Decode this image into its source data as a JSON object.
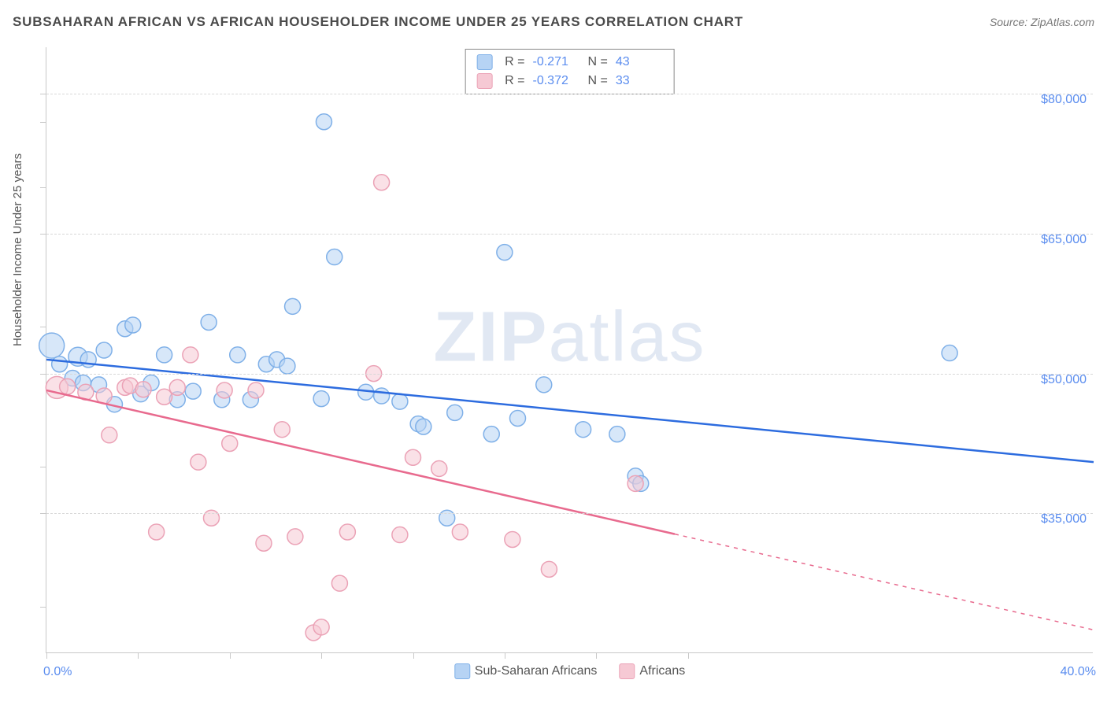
{
  "title": "SUBSAHARAN AFRICAN VS AFRICAN HOUSEHOLDER INCOME UNDER 25 YEARS CORRELATION CHART",
  "source_label": "Source: ZipAtlas.com",
  "y_axis_label": "Householder Income Under 25 years",
  "watermark": "ZIPatlas",
  "chart": {
    "type": "scatter-with-trendlines",
    "xlim": [
      0,
      40
    ],
    "ylim": [
      20000,
      85000
    ],
    "x_tick_positions": [
      0,
      3.5,
      7,
      10.5,
      14,
      17.5,
      21,
      24.5
    ],
    "x_axis_start_label": "0.0%",
    "x_axis_end_label": "40.0%",
    "y_ticks": [
      {
        "value": 35000,
        "label": "$35,000"
      },
      {
        "value": 50000,
        "label": "$50,000"
      },
      {
        "value": 65000,
        "label": "$65,000"
      },
      {
        "value": 80000,
        "label": "$80,000"
      }
    ],
    "y_tick_minors": [
      25000,
      40000,
      55000,
      70000,
      77000
    ],
    "background_color": "#ffffff",
    "grid_color": "#d8d8d8",
    "axis_color": "#c9c9c9",
    "tick_label_color": "#5b8def",
    "series": [
      {
        "name": "Sub-Saharan Africans",
        "color_fill": "#b6d3f4",
        "color_stroke": "#7fb0e8",
        "trend_color": "#2d6cdf",
        "marker_radius": 10,
        "R": "-0.271",
        "N": "43",
        "trendline": {
          "x1": 0,
          "y1": 51500,
          "x2": 40,
          "y2": 40500,
          "dash_from_x": 40
        },
        "points": [
          {
            "x": 0.2,
            "y": 53000,
            "r": 16
          },
          {
            "x": 0.5,
            "y": 51000,
            "r": 10
          },
          {
            "x": 1.0,
            "y": 49500,
            "r": 10
          },
          {
            "x": 1.2,
            "y": 51800,
            "r": 12
          },
          {
            "x": 1.4,
            "y": 49000,
            "r": 10
          },
          {
            "x": 1.6,
            "y": 51500,
            "r": 10
          },
          {
            "x": 2.0,
            "y": 48800,
            "r": 10
          },
          {
            "x": 2.2,
            "y": 52500,
            "r": 10
          },
          {
            "x": 2.6,
            "y": 46700,
            "r": 10
          },
          {
            "x": 3.0,
            "y": 54800,
            "r": 10
          },
          {
            "x": 3.3,
            "y": 55200,
            "r": 10
          },
          {
            "x": 3.6,
            "y": 47800,
            "r": 10
          },
          {
            "x": 4.0,
            "y": 49000,
            "r": 10
          },
          {
            "x": 4.5,
            "y": 52000,
            "r": 10
          },
          {
            "x": 5.0,
            "y": 47200,
            "r": 10
          },
          {
            "x": 5.6,
            "y": 48100,
            "r": 10
          },
          {
            "x": 6.2,
            "y": 55500,
            "r": 10
          },
          {
            "x": 6.7,
            "y": 47200,
            "r": 10
          },
          {
            "x": 7.3,
            "y": 52000,
            "r": 10
          },
          {
            "x": 7.8,
            "y": 47200,
            "r": 10
          },
          {
            "x": 8.4,
            "y": 51000,
            "r": 10
          },
          {
            "x": 8.8,
            "y": 51500,
            "r": 10
          },
          {
            "x": 9.2,
            "y": 50800,
            "r": 10
          },
          {
            "x": 9.4,
            "y": 57200,
            "r": 10
          },
          {
            "x": 10.5,
            "y": 47300,
            "r": 10
          },
          {
            "x": 10.6,
            "y": 77000,
            "r": 10
          },
          {
            "x": 11.0,
            "y": 62500,
            "r": 10
          },
          {
            "x": 12.2,
            "y": 48000,
            "r": 10
          },
          {
            "x": 12.8,
            "y": 47600,
            "r": 10
          },
          {
            "x": 13.5,
            "y": 47000,
            "r": 10
          },
          {
            "x": 14.2,
            "y": 44600,
            "r": 10
          },
          {
            "x": 14.4,
            "y": 44300,
            "r": 10
          },
          {
            "x": 15.3,
            "y": 34500,
            "r": 10
          },
          {
            "x": 15.6,
            "y": 45800,
            "r": 10
          },
          {
            "x": 17.0,
            "y": 43500,
            "r": 10
          },
          {
            "x": 17.5,
            "y": 63000,
            "r": 10
          },
          {
            "x": 18.0,
            "y": 45200,
            "r": 10
          },
          {
            "x": 19.0,
            "y": 48800,
            "r": 10
          },
          {
            "x": 20.5,
            "y": 44000,
            "r": 10
          },
          {
            "x": 21.8,
            "y": 43500,
            "r": 10
          },
          {
            "x": 22.5,
            "y": 39000,
            "r": 10
          },
          {
            "x": 22.7,
            "y": 38200,
            "r": 10
          },
          {
            "x": 34.5,
            "y": 52200,
            "r": 10
          }
        ]
      },
      {
        "name": "Africans",
        "color_fill": "#f6c9d4",
        "color_stroke": "#eba2b6",
        "trend_color": "#e86a8e",
        "marker_radius": 10,
        "R": "-0.372",
        "N": "33",
        "trendline": {
          "x1": 0,
          "y1": 48200,
          "x2": 40,
          "y2": 22500,
          "dash_from_x": 24
        },
        "points": [
          {
            "x": 0.4,
            "y": 48500,
            "r": 14
          },
          {
            "x": 0.8,
            "y": 48600,
            "r": 10
          },
          {
            "x": 1.5,
            "y": 48000,
            "r": 10
          },
          {
            "x": 2.2,
            "y": 47600,
            "r": 10
          },
          {
            "x": 2.4,
            "y": 43400,
            "r": 10
          },
          {
            "x": 3.0,
            "y": 48500,
            "r": 10
          },
          {
            "x": 3.2,
            "y": 48700,
            "r": 10
          },
          {
            "x": 3.7,
            "y": 48300,
            "r": 10
          },
          {
            "x": 4.2,
            "y": 33000,
            "r": 10
          },
          {
            "x": 4.5,
            "y": 47500,
            "r": 10
          },
          {
            "x": 5.0,
            "y": 48500,
            "r": 10
          },
          {
            "x": 5.5,
            "y": 52000,
            "r": 10
          },
          {
            "x": 5.8,
            "y": 40500,
            "r": 10
          },
          {
            "x": 6.3,
            "y": 34500,
            "r": 10
          },
          {
            "x": 6.8,
            "y": 48200,
            "r": 10
          },
          {
            "x": 7.0,
            "y": 42500,
            "r": 10
          },
          {
            "x": 8.0,
            "y": 48200,
            "r": 10
          },
          {
            "x": 8.3,
            "y": 31800,
            "r": 10
          },
          {
            "x": 9.0,
            "y": 44000,
            "r": 10
          },
          {
            "x": 9.5,
            "y": 32500,
            "r": 10
          },
          {
            "x": 10.2,
            "y": 22200,
            "r": 10
          },
          {
            "x": 10.5,
            "y": 22800,
            "r": 10
          },
          {
            "x": 11.2,
            "y": 27500,
            "r": 10
          },
          {
            "x": 11.5,
            "y": 33000,
            "r": 10
          },
          {
            "x": 12.5,
            "y": 50000,
            "r": 10
          },
          {
            "x": 12.8,
            "y": 70500,
            "r": 10
          },
          {
            "x": 13.5,
            "y": 32700,
            "r": 10
          },
          {
            "x": 14.0,
            "y": 41000,
            "r": 10
          },
          {
            "x": 15.0,
            "y": 39800,
            "r": 10
          },
          {
            "x": 15.8,
            "y": 33000,
            "r": 10
          },
          {
            "x": 17.8,
            "y": 32200,
            "r": 10
          },
          {
            "x": 19.2,
            "y": 29000,
            "r": 10
          },
          {
            "x": 22.5,
            "y": 38200,
            "r": 10
          }
        ]
      }
    ]
  },
  "top_legend": {
    "r_label": "R =",
    "n_label": "N ="
  },
  "bottom_legend": {
    "items": [
      "Sub-Saharan Africans",
      "Africans"
    ]
  }
}
